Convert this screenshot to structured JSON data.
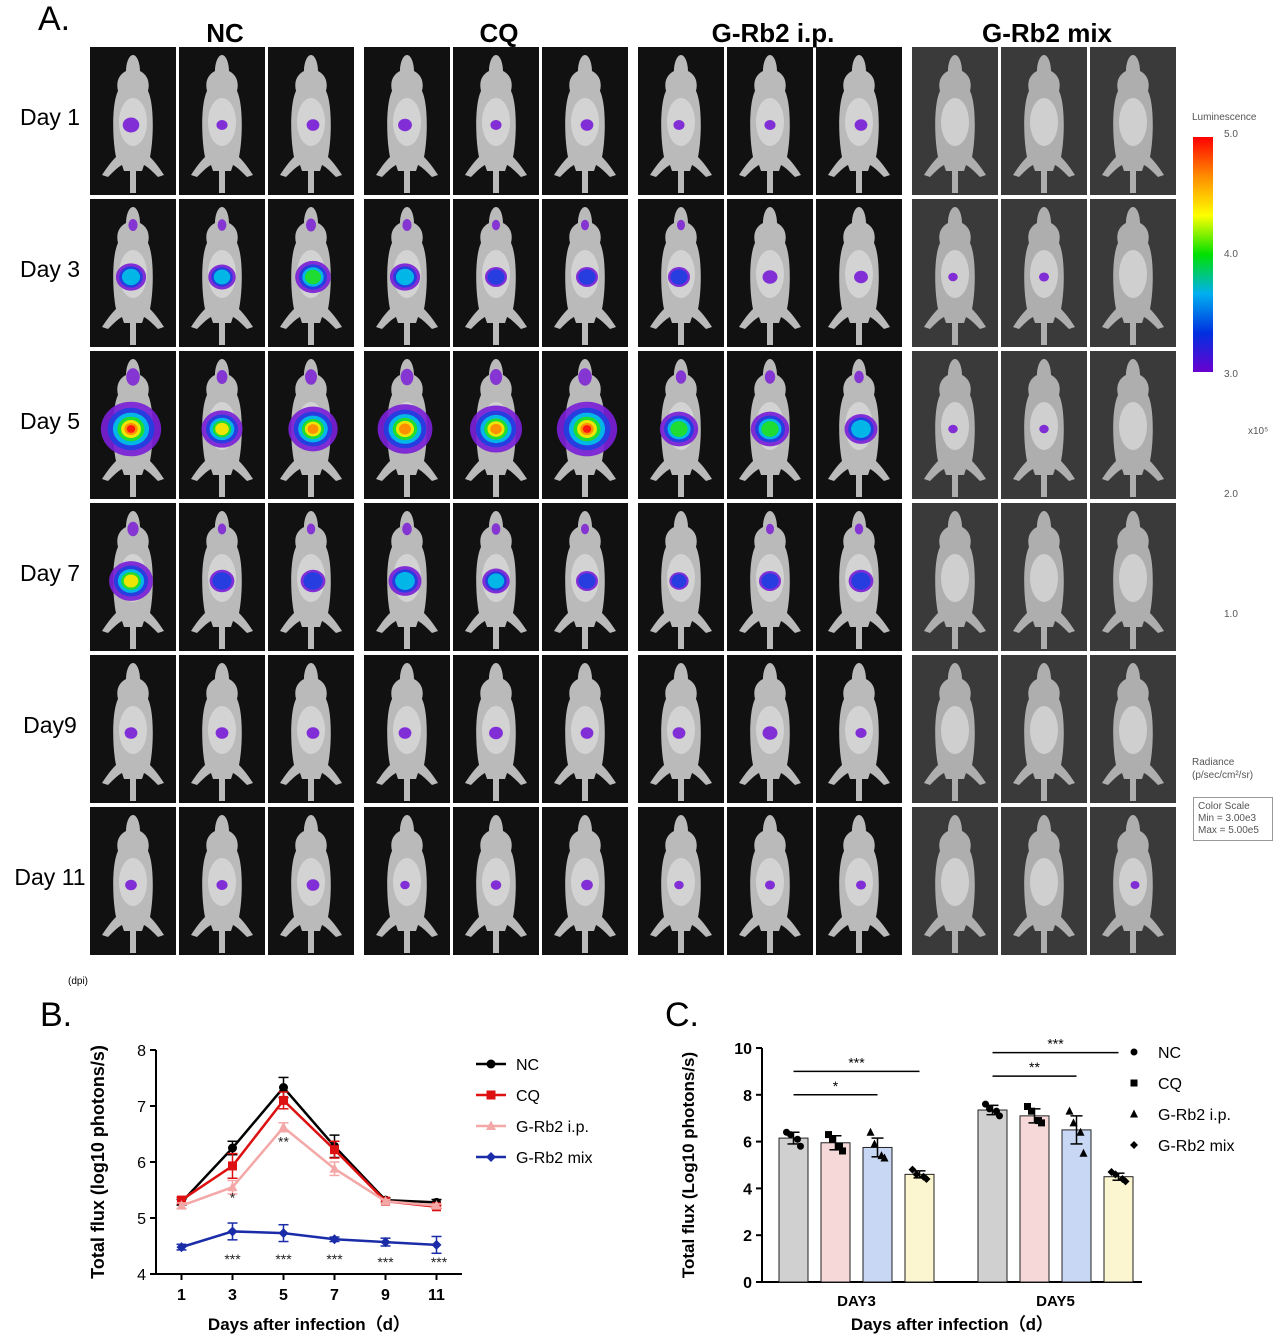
{
  "figure": {
    "panel_labels": {
      "a": "A.",
      "b": "B.",
      "c": "C."
    },
    "dpi_label": "(dpi)",
    "group_titles": [
      "NC",
      "CQ",
      "G-Rb2 i.p.",
      "G-Rb2 mix"
    ],
    "row_labels": [
      "Day 1",
      "Day 3",
      "Day 5",
      "Day 7",
      "Day9",
      "Day 11"
    ],
    "signal_levels": [
      [
        [
          0.15,
          0.05,
          0.08
        ],
        [
          0.1,
          0.05,
          0.08
        ],
        [
          0.05,
          0.05,
          0.08
        ],
        [
          0.0,
          0.0,
          0.0
        ]
      ],
      [
        [
          0.4,
          0.35,
          0.5
        ],
        [
          0.4,
          0.25,
          0.25
        ],
        [
          0.25,
          0.12,
          0.1
        ],
        [
          0.02,
          0.03,
          0.0
        ]
      ],
      [
        [
          0.95,
          0.6,
          0.75
        ],
        [
          0.85,
          0.8,
          0.95
        ],
        [
          0.55,
          0.55,
          0.45
        ],
        [
          0.02,
          0.02,
          0.0
        ]
      ],
      [
        [
          0.65,
          0.3,
          0.3
        ],
        [
          0.45,
          0.35,
          0.25
        ],
        [
          0.2,
          0.25,
          0.3
        ],
        [
          0.0,
          0.0,
          0.0
        ]
      ],
      [
        [
          0.08,
          0.08,
          0.08
        ],
        [
          0.08,
          0.1,
          0.08
        ],
        [
          0.08,
          0.12,
          0.05
        ],
        [
          0.0,
          0.0,
          0.0
        ]
      ],
      [
        [
          0.06,
          0.05,
          0.08
        ],
        [
          0.02,
          0.04,
          0.06
        ],
        [
          0.02,
          0.03,
          0.03
        ],
        [
          0.0,
          0.0,
          0.01
        ]
      ]
    ],
    "colorbar": {
      "title": "Luminescence",
      "ticks": [
        "5.0",
        "4.0",
        "3.0",
        "2.0",
        "1.0"
      ],
      "multiplier": "x10⁵",
      "radiance_label": "Radiance",
      "radiance_units": "(p/sec/cm²/sr)",
      "scale_lines": [
        "Color Scale",
        "Min = 3.00e3",
        "Max = 5.00e5"
      ],
      "colors": [
        "#ff0000",
        "#ff8c00",
        "#ffff00",
        "#00e000",
        "#00b0f0",
        "#0030e0",
        "#6a00d0"
      ]
    }
  },
  "chart_data": [
    {
      "type": "line",
      "panel": "B.",
      "xlabel": "Days after infection（d）",
      "ylabel": "Total flux (log10 photons/s)",
      "x": [
        1,
        3,
        5,
        7,
        9,
        11
      ],
      "xticks": [
        "1",
        "3",
        "5",
        "7",
        "9",
        "11"
      ],
      "yticks": [
        "4",
        "5",
        "6",
        "7",
        "8"
      ],
      "ylim": [
        4,
        8
      ],
      "xlim": [
        0,
        12
      ],
      "series": [
        {
          "name": "NC",
          "color": "#000000",
          "marker": "circle",
          "values": [
            5.28,
            6.25,
            7.33,
            6.28,
            5.32,
            5.28
          ],
          "errors": [
            0.05,
            0.12,
            0.18,
            0.2,
            0.04,
            0.05
          ]
        },
        {
          "name": "CQ",
          "color": "#dd1111",
          "marker": "square",
          "values": [
            5.32,
            5.93,
            7.1,
            6.22,
            5.3,
            5.2
          ],
          "errors": [
            0.05,
            0.22,
            0.15,
            0.15,
            0.03,
            0.03
          ]
        },
        {
          "name": "G-Rb2 i.p.",
          "color": "#f4a7a7",
          "marker": "triangle",
          "values": [
            5.22,
            5.55,
            6.62,
            5.88,
            5.3,
            5.22
          ],
          "errors": [
            0.05,
            0.12,
            0.08,
            0.12,
            0.03,
            0.03
          ]
        },
        {
          "name": "G-Rb2 mix",
          "color": "#1a2ca8",
          "marker": "diamond",
          "values": [
            4.48,
            4.76,
            4.73,
            4.62,
            4.57,
            4.52
          ],
          "errors": [
            0.05,
            0.15,
            0.15,
            0.04,
            0.07,
            0.15
          ]
        }
      ],
      "annotations": [
        {
          "x": 3,
          "y": 5.35,
          "text": "*"
        },
        {
          "x": 5,
          "y": 6.35,
          "text": "**"
        },
        {
          "x": 3,
          "y": 4.25,
          "text": "***"
        },
        {
          "x": 5,
          "y": 4.25,
          "text": "***"
        },
        {
          "x": 7,
          "y": 4.25,
          "text": "***"
        },
        {
          "x": 9,
          "y": 4.2,
          "text": "***"
        },
        {
          "x": 11.1,
          "y": 4.2,
          "text": "***"
        }
      ],
      "legend": "right"
    },
    {
      "type": "bar",
      "panel": "C.",
      "xlabel": "Days after infection（d）",
      "ylabel": "Total flux (Log10 photons/s)",
      "categories": [
        "DAY3",
        "DAY5"
      ],
      "yticks": [
        "0",
        "2",
        "4",
        "6",
        "8",
        "10"
      ],
      "ylim": [
        0,
        10
      ],
      "series": [
        {
          "name": "NC",
          "color": "#d0d0d0",
          "marker": "circle",
          "values": [
            6.15,
            7.35
          ],
          "errors": [
            0.25,
            0.2
          ],
          "points": [
            [
              6.4,
              5.8,
              6.3,
              6.1
            ],
            [
              7.6,
              7.1,
              7.4,
              7.3
            ]
          ]
        },
        {
          "name": "CQ",
          "color": "#f6d8d8",
          "marker": "square",
          "values": [
            5.95,
            7.1
          ],
          "errors": [
            0.3,
            0.3
          ],
          "points": [
            [
              6.3,
              5.6,
              6.1,
              5.8
            ],
            [
              7.5,
              6.8,
              7.3,
              6.9
            ]
          ]
        },
        {
          "name": "G-Rb2 i.p.",
          "color": "#c7d7f4",
          "marker": "triangle",
          "values": [
            5.75,
            6.5
          ],
          "errors": [
            0.4,
            0.6
          ],
          "points": [
            [
              6.4,
              5.3,
              5.9,
              5.4
            ],
            [
              7.3,
              5.5,
              6.8,
              6.4
            ]
          ]
        },
        {
          "name": "G-Rb2 mix",
          "color": "#fbf6cf",
          "marker": "diamond",
          "values": [
            4.6,
            4.5
          ],
          "errors": [
            0.15,
            0.15
          ],
          "points": [
            [
              4.8,
              4.4,
              4.6,
              4.5
            ],
            [
              4.7,
              4.3,
              4.6,
              4.4
            ]
          ]
        }
      ],
      "significance": [
        {
          "category": "DAY3",
          "from": 0,
          "to": 3,
          "y": 9.0,
          "text": "***"
        },
        {
          "category": "DAY3",
          "from": 0,
          "to": 2,
          "y": 8.0,
          "text": "*"
        },
        {
          "category": "DAY5",
          "from": 0,
          "to": 3,
          "y": 9.8,
          "text": "***"
        },
        {
          "category": "DAY5",
          "from": 0,
          "to": 2,
          "y": 8.8,
          "text": "**"
        }
      ],
      "legend": "right"
    }
  ]
}
